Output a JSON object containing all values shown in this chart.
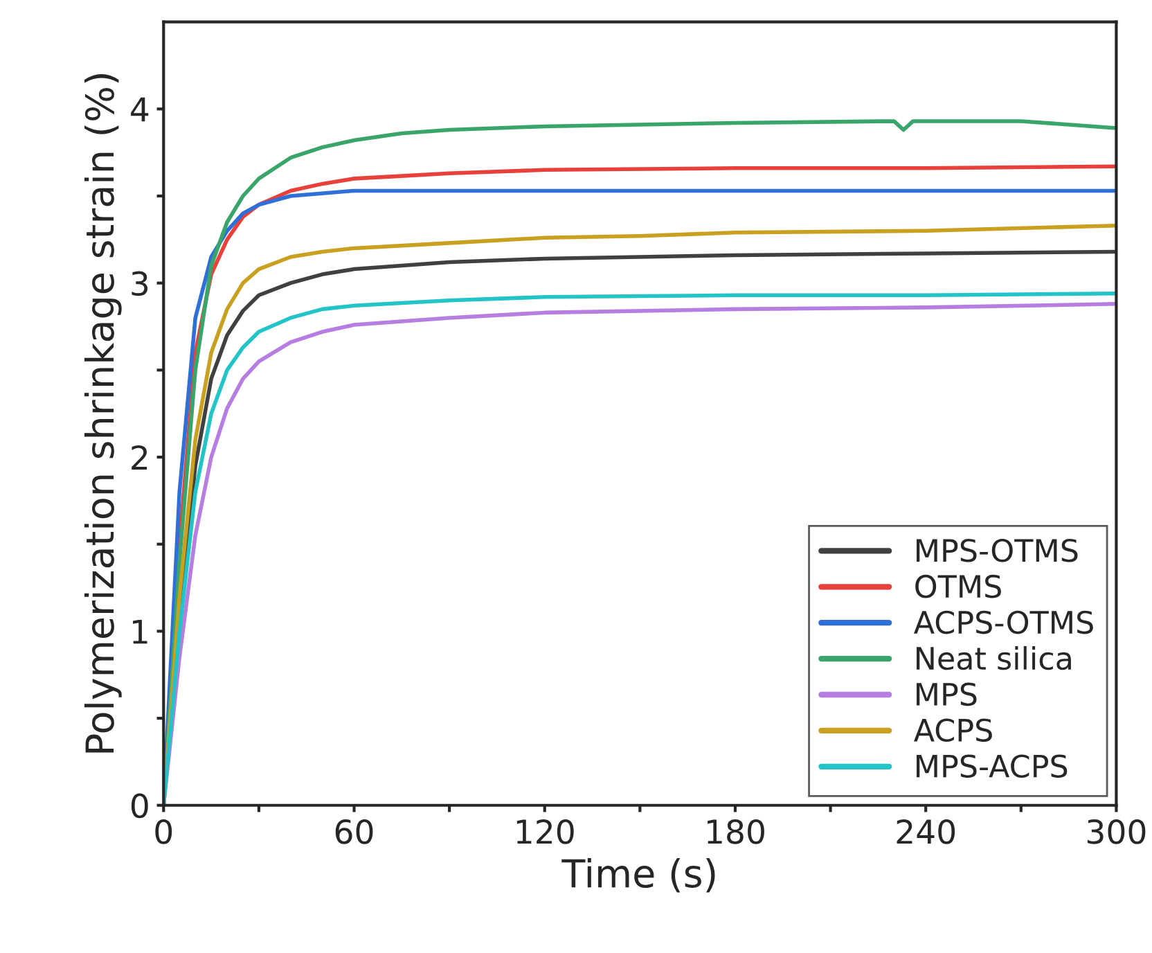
{
  "chart_data": {
    "type": "line",
    "xlabel": "Time (s)",
    "ylabel": "Polymerization shrinkage strain (%)",
    "xlim": [
      0,
      300
    ],
    "ylim": [
      0,
      4.5
    ],
    "xticks": [
      0,
      {
        "value": 30,
        "label": null
      },
      60,
      {
        "value": 90,
        "label": null
      },
      120,
      {
        "value": 150,
        "label": null
      },
      180,
      {
        "value": 210,
        "label": null
      },
      240,
      {
        "value": 270,
        "label": null
      },
      300
    ],
    "yticks": [
      0,
      {
        "value": 0.5,
        "label": null
      },
      1,
      {
        "value": 1.5,
        "label": null
      },
      2,
      {
        "value": 2.5,
        "label": null
      },
      3,
      {
        "value": 3.5,
        "label": null
      },
      4
    ],
    "grid": false,
    "legend": "bottom right",
    "line_style": "solid",
    "marker": "none",
    "series": [
      {
        "name": "MPS-OTMS",
        "color": "#404040",
        "x": [
          0,
          5,
          10,
          15,
          20,
          25,
          30,
          40,
          50,
          60,
          90,
          120,
          180,
          240,
          300
        ],
        "values": [
          0,
          1.1,
          1.95,
          2.45,
          2.7,
          2.84,
          2.93,
          3.0,
          3.05,
          3.08,
          3.12,
          3.14,
          3.16,
          3.17,
          3.18
        ]
      },
      {
        "name": "OTMS",
        "color": "#e8413c",
        "x": [
          0,
          5,
          10,
          15,
          20,
          25,
          30,
          40,
          50,
          60,
          90,
          120,
          180,
          240,
          300
        ],
        "values": [
          0,
          1.5,
          2.6,
          3.05,
          3.25,
          3.38,
          3.45,
          3.53,
          3.57,
          3.6,
          3.63,
          3.65,
          3.66,
          3.66,
          3.67
        ]
      },
      {
        "name": "ACPS-OTMS",
        "color": "#2f6fd8",
        "x": [
          0,
          5,
          10,
          15,
          20,
          25,
          30,
          40,
          60,
          120,
          180,
          240,
          300
        ],
        "values": [
          0,
          1.8,
          2.8,
          3.15,
          3.3,
          3.4,
          3.45,
          3.5,
          3.53,
          3.53,
          3.53,
          3.53,
          3.53
        ]
      },
      {
        "name": "Neat silica",
        "color": "#3aa56a",
        "x": [
          0,
          5,
          10,
          15,
          20,
          25,
          30,
          40,
          50,
          60,
          75,
          90,
          120,
          180,
          230,
          233,
          236,
          270,
          300
        ],
        "values": [
          0,
          1.4,
          2.5,
          3.1,
          3.35,
          3.5,
          3.6,
          3.72,
          3.78,
          3.82,
          3.86,
          3.88,
          3.9,
          3.92,
          3.93,
          3.88,
          3.93,
          3.93,
          3.89
        ]
      },
      {
        "name": "MPS",
        "color": "#b57ee0",
        "x": [
          0,
          5,
          10,
          15,
          20,
          25,
          30,
          40,
          50,
          60,
          90,
          120,
          180,
          240,
          300
        ],
        "values": [
          0,
          0.85,
          1.55,
          2.0,
          2.28,
          2.45,
          2.55,
          2.66,
          2.72,
          2.76,
          2.8,
          2.83,
          2.85,
          2.86,
          2.88
        ]
      },
      {
        "name": "ACPS",
        "color": "#c9a020",
        "x": [
          0,
          5,
          10,
          15,
          20,
          25,
          30,
          40,
          50,
          60,
          90,
          120,
          150,
          180,
          240,
          300
        ],
        "values": [
          0,
          1.2,
          2.1,
          2.6,
          2.85,
          3.0,
          3.08,
          3.15,
          3.18,
          3.2,
          3.23,
          3.26,
          3.27,
          3.29,
          3.3,
          3.33
        ]
      },
      {
        "name": "MPS-ACPS",
        "color": "#22c4c8",
        "x": [
          0,
          5,
          10,
          15,
          20,
          25,
          30,
          40,
          50,
          60,
          90,
          120,
          180,
          240,
          300
        ],
        "values": [
          0,
          1.0,
          1.8,
          2.25,
          2.5,
          2.63,
          2.72,
          2.8,
          2.85,
          2.87,
          2.9,
          2.92,
          2.93,
          2.93,
          2.94
        ]
      }
    ]
  }
}
